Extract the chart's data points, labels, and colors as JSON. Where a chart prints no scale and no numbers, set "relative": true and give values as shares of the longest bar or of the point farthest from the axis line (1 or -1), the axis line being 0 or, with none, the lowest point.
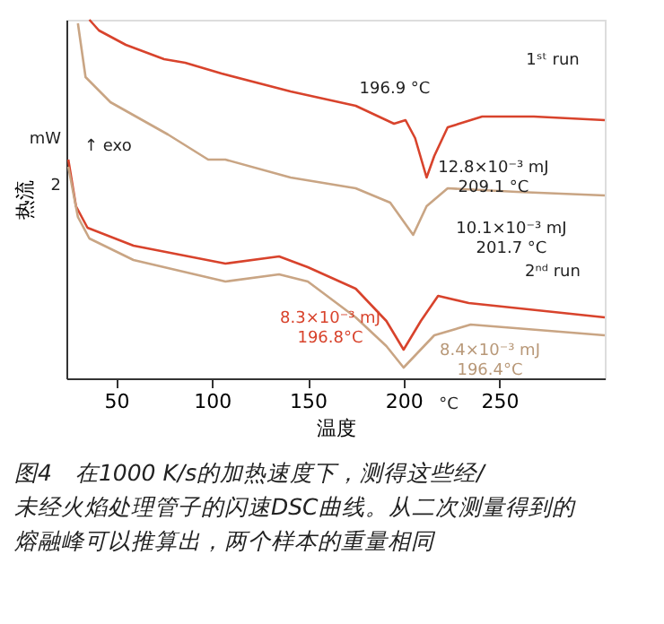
{
  "chart_data": {
    "type": "line",
    "relative": true,
    "xlabel": "温度",
    "ylabel": "热流",
    "xlim": [
      24,
      305
    ],
    "xticks": [
      50,
      100,
      150,
      200,
      250
    ],
    "grid": false,
    "title": "图4　在1000 K/s的加热速度下，测得这些经/未经火焰处理管子的闪速DSC曲线。从二次测量得到的熔融峰可以推算出，两个样本的重量相同",
    "series": [
      {
        "color": "#d8432c",
        "x": [
          36,
          41,
          55,
          75,
          86,
          105,
          141,
          175,
          191,
          195,
          201,
          206,
          212,
          216,
          223,
          241,
          268,
          305
        ],
        "values": [
          1.0,
          0.97,
          0.93,
          0.89,
          0.88,
          0.85,
          0.8,
          0.76,
          0.72,
          0.71,
          0.72,
          0.67,
          0.56,
          0.62,
          0.7,
          0.73,
          0.73,
          0.72
        ]
      },
      {
        "color": "#c9a584",
        "x": [
          30,
          34,
          47,
          77,
          98,
          107,
          141,
          175,
          193,
          205,
          212,
          223,
          259,
          305
        ],
        "values": [
          0.99,
          0.84,
          0.77,
          0.68,
          0.61,
          0.61,
          0.56,
          0.53,
          0.49,
          0.4,
          0.48,
          0.53,
          0.52,
          0.51
        ]
      },
      {
        "color": "#d8432c",
        "x": [
          25,
          29,
          35,
          59,
          107,
          135,
          150,
          175,
          191,
          200,
          209,
          218,
          234,
          305
        ],
        "values": [
          0.61,
          0.48,
          0.42,
          0.37,
          0.32,
          0.34,
          0.31,
          0.25,
          0.16,
          0.08,
          0.16,
          0.23,
          0.21,
          0.17
        ]
      },
      {
        "color": "#c9a584",
        "x": [
          25,
          30,
          36,
          59,
          107,
          135,
          150,
          175,
          191,
          200,
          216,
          235,
          305
        ],
        "values": [
          0.59,
          0.45,
          0.39,
          0.33,
          0.27,
          0.29,
          0.27,
          0.17,
          0.09,
          0.03,
          0.12,
          0.15,
          0.12
        ]
      }
    ],
    "annotations": [
      "mW",
      "2",
      "↑ exo",
      "°C",
      "1ˢᵗ run",
      "196.9 °C",
      "12.8×10⁻³ mJ",
      "209.1 °C",
      "10.1×10⁻³ mJ",
      "201.7 °C",
      "2ⁿᵈ run",
      "8.3×10⁻³ mJ",
      "196.8°C",
      "8.4×10⁻³ mJ",
      "196.4°C"
    ]
  }
}
